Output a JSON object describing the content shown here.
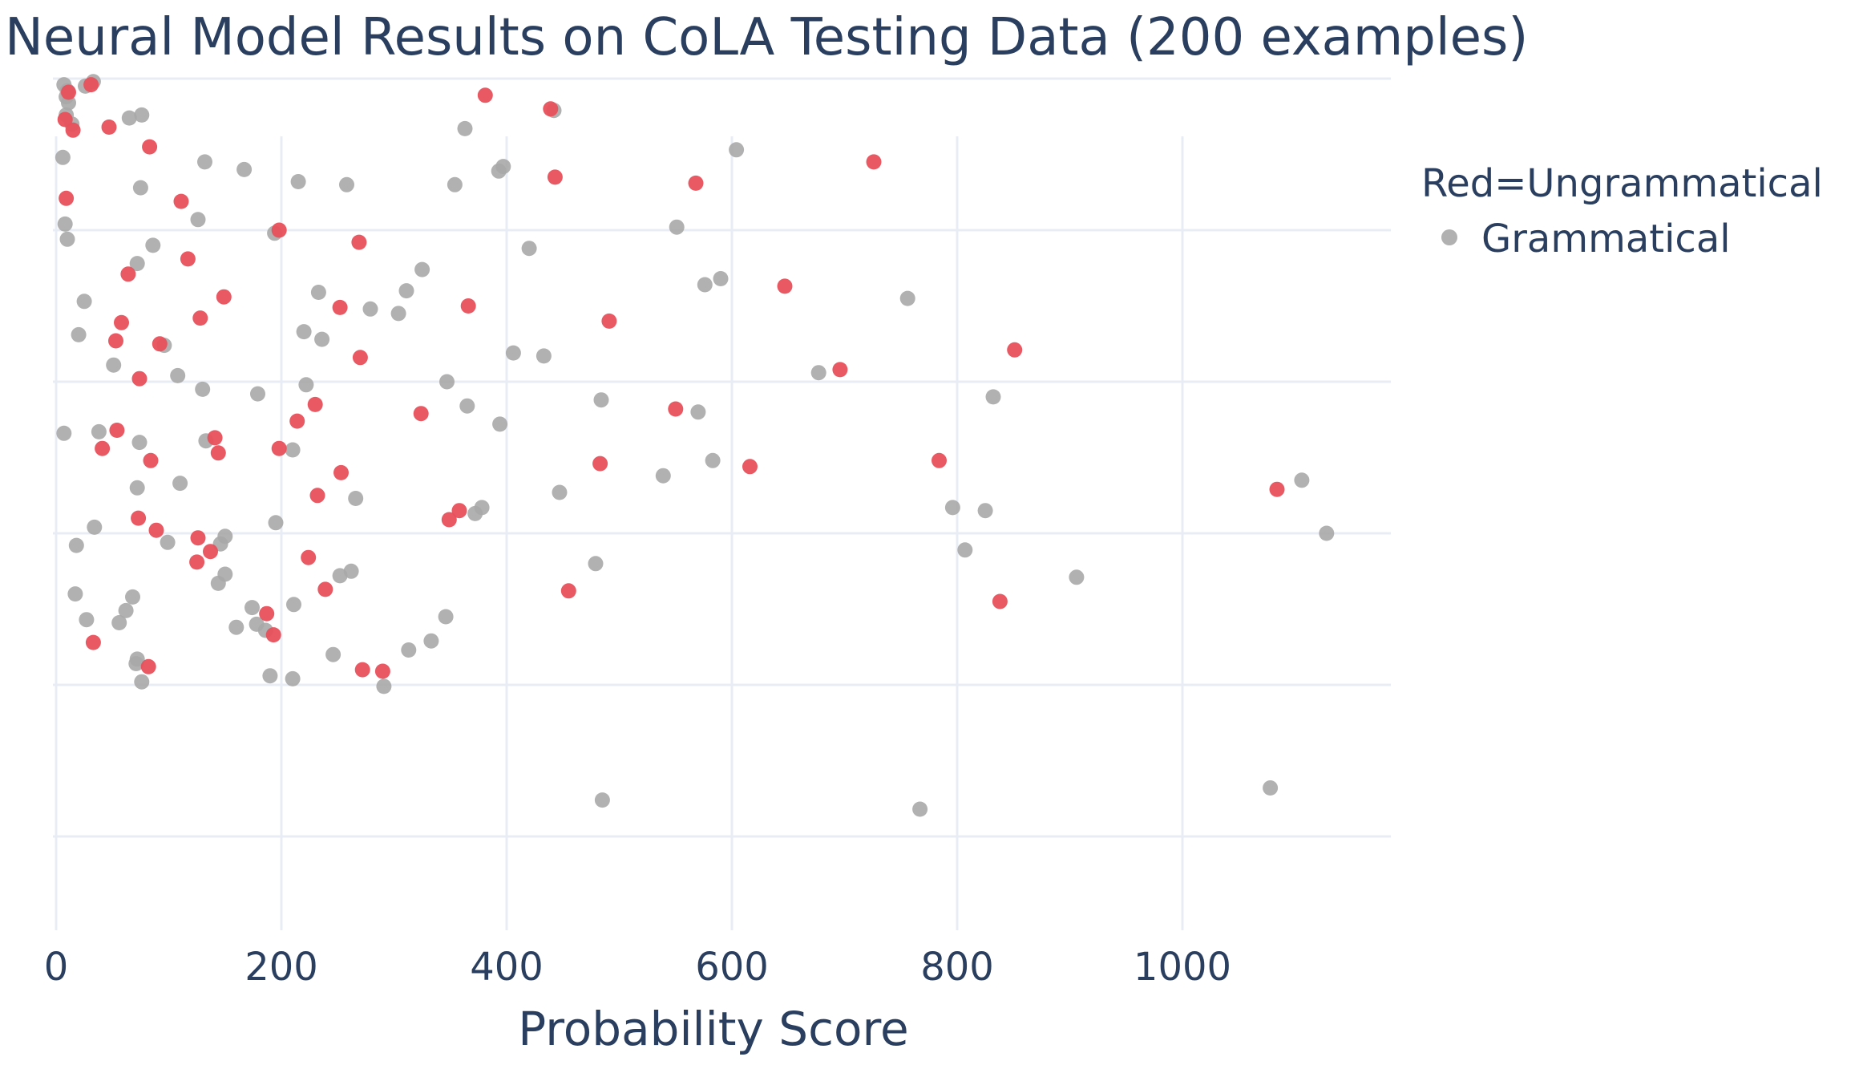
{
  "chart_data": {
    "type": "scatter",
    "title": "Neural Model Results on CoLA Testing Data (200 examples)",
    "xlabel": "Probability Score",
    "ylabel": "",
    "xlim": [
      -5,
      1180
    ],
    "ylim": [
      -0.6,
      5.6
    ],
    "x_ticks": [
      0,
      200,
      400,
      600,
      800,
      1000
    ],
    "x_tick_labels": [
      "0",
      "200",
      "400",
      "600",
      "800",
      "1000"
    ],
    "y_gridlines": [
      0,
      1,
      2,
      3,
      4,
      5
    ],
    "grid": true,
    "legend": {
      "title": "Red=Ungrammatical",
      "placement": "top-right",
      "entries": [
        {
          "label": "Grammatical",
          "color": "#a9a9a9"
        }
      ]
    },
    "colors": {
      "grammatical": "#a9a9a9",
      "ungrammatical": "#e8505b"
    },
    "series": [
      {
        "label": "Grammatical",
        "color": "#a9a9a9",
        "points": [
          [
            7,
            4.96
          ],
          [
            10,
            4.92
          ],
          [
            9,
            4.88
          ],
          [
            11,
            4.84
          ],
          [
            9,
            4.76
          ],
          [
            14,
            4.7
          ],
          [
            26,
            4.95
          ],
          [
            33,
            4.98
          ],
          [
            6,
            4.48
          ],
          [
            65,
            4.74
          ],
          [
            76,
            4.76
          ],
          [
            132,
            4.45
          ],
          [
            167,
            4.4
          ],
          [
            215,
            4.32
          ],
          [
            258,
            4.3
          ],
          [
            194,
            3.98
          ],
          [
            75,
            4.28
          ],
          [
            126,
            4.07
          ],
          [
            8,
            4.04
          ],
          [
            10,
            3.94
          ],
          [
            86,
            3.9
          ],
          [
            72,
            3.78
          ],
          [
            25,
            3.53
          ],
          [
            20,
            3.31
          ],
          [
            51,
            3.11
          ],
          [
            96,
            3.24
          ],
          [
            108,
            3.04
          ],
          [
            130,
            2.95
          ],
          [
            179,
            2.92
          ],
          [
            222,
            2.98
          ],
          [
            220,
            3.33
          ],
          [
            236,
            3.28
          ],
          [
            233,
            3.59
          ],
          [
            279,
            3.48
          ],
          [
            304,
            3.45
          ],
          [
            311,
            3.6
          ],
          [
            325,
            3.74
          ],
          [
            354,
            4.3
          ],
          [
            363,
            4.67
          ],
          [
            393,
            4.39
          ],
          [
            397,
            4.42
          ],
          [
            420,
            3.88
          ],
          [
            442,
            4.79
          ],
          [
            406,
            3.19
          ],
          [
            433,
            3.17
          ],
          [
            347,
            3.0
          ],
          [
            365,
            2.84
          ],
          [
            394,
            2.72
          ],
          [
            484,
            2.88
          ],
          [
            551,
            4.02
          ],
          [
            576,
            3.64
          ],
          [
            590,
            3.68
          ],
          [
            604,
            4.53
          ],
          [
            570,
            2.8
          ],
          [
            583,
            2.48
          ],
          [
            539,
            2.38
          ],
          [
            447,
            2.27
          ],
          [
            479,
            1.8
          ],
          [
            485,
            0.24
          ],
          [
            677,
            3.06
          ],
          [
            756,
            3.55
          ],
          [
            832,
            2.9
          ],
          [
            796,
            2.17
          ],
          [
            825,
            2.15
          ],
          [
            807,
            1.89
          ],
          [
            906,
            1.71
          ],
          [
            1078,
            0.32
          ],
          [
            767,
            0.18
          ],
          [
            1106,
            2.35
          ],
          [
            1128,
            2.0
          ],
          [
            7,
            2.66
          ],
          [
            38,
            2.67
          ],
          [
            74,
            2.6
          ],
          [
            133,
            2.61
          ],
          [
            210,
            2.55
          ],
          [
            72,
            2.3
          ],
          [
            110,
            2.33
          ],
          [
            34,
            2.04
          ],
          [
            18,
            1.92
          ],
          [
            99,
            1.94
          ],
          [
            150,
            1.98
          ],
          [
            146,
            1.93
          ],
          [
            195,
            2.07
          ],
          [
            17,
            1.6
          ],
          [
            150,
            1.73
          ],
          [
            144,
            1.67
          ],
          [
            68,
            1.58
          ],
          [
            62,
            1.49
          ],
          [
            27,
            1.43
          ],
          [
            56,
            1.41
          ],
          [
            160,
            1.38
          ],
          [
            174,
            1.51
          ],
          [
            178,
            1.4
          ],
          [
            186,
            1.36
          ],
          [
            211,
            1.53
          ],
          [
            252,
            1.72
          ],
          [
            262,
            1.75
          ],
          [
            266,
            2.23
          ],
          [
            378,
            2.17
          ],
          [
            372,
            2.13
          ],
          [
            346,
            1.45
          ],
          [
            333,
            1.29
          ],
          [
            313,
            1.23
          ],
          [
            246,
            1.2
          ],
          [
            72,
            1.17
          ],
          [
            71,
            1.14
          ],
          [
            76,
            1.02
          ],
          [
            190,
            1.06
          ],
          [
            210,
            1.04
          ],
          [
            291,
            0.99
          ]
        ]
      },
      {
        "label": "Ungrammatical",
        "color": "#e8505b",
        "points": [
          [
            11,
            4.91
          ],
          [
            31,
            4.96
          ],
          [
            8,
            4.73
          ],
          [
            15,
            4.66
          ],
          [
            47,
            4.68
          ],
          [
            83,
            4.55
          ],
          [
            9,
            4.21
          ],
          [
            111,
            4.19
          ],
          [
            198,
            4.0
          ],
          [
            269,
            3.92
          ],
          [
            117,
            3.81
          ],
          [
            64,
            3.71
          ],
          [
            149,
            3.56
          ],
          [
            252,
            3.49
          ],
          [
            366,
            3.5
          ],
          [
            381,
            4.89
          ],
          [
            439,
            4.8
          ],
          [
            443,
            4.35
          ],
          [
            568,
            4.31
          ],
          [
            726,
            4.45
          ],
          [
            647,
            3.63
          ],
          [
            491,
            3.4
          ],
          [
            128,
            3.42
          ],
          [
            58,
            3.39
          ],
          [
            53,
            3.27
          ],
          [
            92,
            3.25
          ],
          [
            74,
            3.02
          ],
          [
            270,
            3.16
          ],
          [
            230,
            2.85
          ],
          [
            214,
            2.74
          ],
          [
            324,
            2.79
          ],
          [
            550,
            2.82
          ],
          [
            696,
            3.08
          ],
          [
            851,
            3.21
          ],
          [
            54,
            2.68
          ],
          [
            41,
            2.56
          ],
          [
            141,
            2.63
          ],
          [
            144,
            2.53
          ],
          [
            84,
            2.48
          ],
          [
            198,
            2.56
          ],
          [
            253,
            2.4
          ],
          [
            232,
            2.25
          ],
          [
            358,
            2.15
          ],
          [
            349,
            2.09
          ],
          [
            483,
            2.46
          ],
          [
            616,
            2.44
          ],
          [
            784,
            2.48
          ],
          [
            1084,
            2.29
          ],
          [
            73,
            2.1
          ],
          [
            89,
            2.02
          ],
          [
            126,
            1.97
          ],
          [
            137,
            1.88
          ],
          [
            125,
            1.81
          ],
          [
            224,
            1.84
          ],
          [
            239,
            1.63
          ],
          [
            455,
            1.62
          ],
          [
            838,
            1.55
          ],
          [
            187,
            1.47
          ],
          [
            193,
            1.33
          ],
          [
            33,
            1.28
          ],
          [
            82,
            1.12
          ],
          [
            272,
            1.1
          ],
          [
            290,
            1.09
          ]
        ]
      }
    ]
  }
}
